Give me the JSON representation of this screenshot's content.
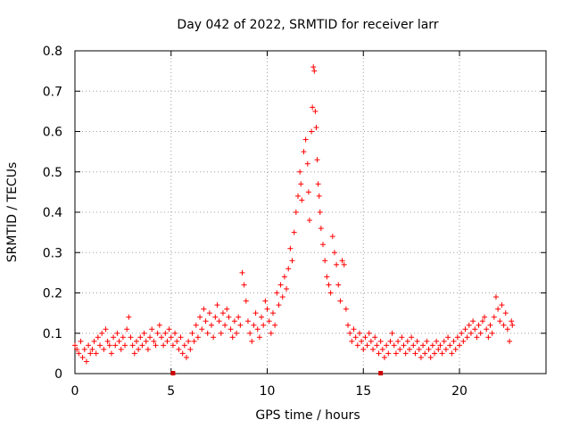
{
  "chart_data": {
    "type": "scatter",
    "title": "Day 042 of 2022, SRMTID for receiver larr",
    "xlabel": "GPS time / hours",
    "ylabel": "SRMTID / TECUs",
    "xlim": [
      0,
      24.5
    ],
    "ylim": [
      0,
      0.8
    ],
    "x_ticks": [
      0,
      5,
      10,
      15,
      20
    ],
    "y_ticks": [
      0,
      0.1,
      0.2,
      0.3,
      0.4,
      0.5,
      0.6,
      0.7,
      0.8
    ],
    "x_tick_labels": [
      "0",
      "5",
      "10",
      "15",
      "20"
    ],
    "y_tick_labels": [
      "0",
      "0.1",
      "0.2",
      "0.3",
      "0.4",
      "0.5",
      "0.6",
      "0.7",
      "0.8"
    ],
    "grid": true,
    "marker": "plus",
    "color": "#ff0000",
    "axis_markers_x": [
      5.1,
      15.9
    ],
    "series": [
      {
        "name": "SRMTID",
        "points": [
          [
            0.0,
            0.07
          ],
          [
            0.1,
            0.06
          ],
          [
            0.2,
            0.05
          ],
          [
            0.3,
            0.08
          ],
          [
            0.4,
            0.04
          ],
          [
            0.5,
            0.06
          ],
          [
            0.6,
            0.03
          ],
          [
            0.7,
            0.07
          ],
          [
            0.8,
            0.05
          ],
          [
            0.9,
            0.06
          ],
          [
            1.0,
            0.08
          ],
          [
            1.1,
            0.05
          ],
          [
            1.2,
            0.09
          ],
          [
            1.3,
            0.07
          ],
          [
            1.4,
            0.1
          ],
          [
            1.5,
            0.06
          ],
          [
            1.6,
            0.11
          ],
          [
            1.7,
            0.08
          ],
          [
            1.8,
            0.07
          ],
          [
            1.9,
            0.05
          ],
          [
            2.0,
            0.09
          ],
          [
            2.1,
            0.07
          ],
          [
            2.2,
            0.1
          ],
          [
            2.3,
            0.08
          ],
          [
            2.4,
            0.06
          ],
          [
            2.5,
            0.09
          ],
          [
            2.6,
            0.07
          ],
          [
            2.7,
            0.11
          ],
          [
            2.8,
            0.14
          ],
          [
            2.9,
            0.09
          ],
          [
            3.0,
            0.07
          ],
          [
            3.1,
            0.05
          ],
          [
            3.2,
            0.08
          ],
          [
            3.3,
            0.06
          ],
          [
            3.4,
            0.09
          ],
          [
            3.5,
            0.07
          ],
          [
            3.6,
            0.1
          ],
          [
            3.7,
            0.08
          ],
          [
            3.8,
            0.06
          ],
          [
            3.9,
            0.09
          ],
          [
            4.0,
            0.11
          ],
          [
            4.1,
            0.08
          ],
          [
            4.2,
            0.07
          ],
          [
            4.3,
            0.1
          ],
          [
            4.4,
            0.12
          ],
          [
            4.5,
            0.09
          ],
          [
            4.6,
            0.07
          ],
          [
            4.7,
            0.1
          ],
          [
            4.8,
            0.08
          ],
          [
            4.9,
            0.11
          ],
          [
            5.0,
            0.09
          ],
          [
            5.1,
            0.07
          ],
          [
            5.2,
            0.1
          ],
          [
            5.3,
            0.08
          ],
          [
            5.4,
            0.06
          ],
          [
            5.5,
            0.09
          ],
          [
            5.6,
            0.05
          ],
          [
            5.7,
            0.07
          ],
          [
            5.8,
            0.04
          ],
          [
            5.9,
            0.08
          ],
          [
            6.0,
            0.06
          ],
          [
            6.1,
            0.1
          ],
          [
            6.2,
            0.08
          ],
          [
            6.3,
            0.12
          ],
          [
            6.4,
            0.09
          ],
          [
            6.5,
            0.14
          ],
          [
            6.6,
            0.11
          ],
          [
            6.7,
            0.16
          ],
          [
            6.8,
            0.13
          ],
          [
            6.9,
            0.1
          ],
          [
            7.0,
            0.15
          ],
          [
            7.1,
            0.12
          ],
          [
            7.2,
            0.09
          ],
          [
            7.3,
            0.14
          ],
          [
            7.4,
            0.17
          ],
          [
            7.5,
            0.13
          ],
          [
            7.6,
            0.1
          ],
          [
            7.7,
            0.15
          ],
          [
            7.8,
            0.12
          ],
          [
            7.9,
            0.16
          ],
          [
            8.0,
            0.14
          ],
          [
            8.1,
            0.11
          ],
          [
            8.2,
            0.09
          ],
          [
            8.3,
            0.13
          ],
          [
            8.4,
            0.1
          ],
          [
            8.5,
            0.14
          ],
          [
            8.6,
            0.12
          ],
          [
            8.7,
            0.25
          ],
          [
            8.8,
            0.22
          ],
          [
            8.9,
            0.18
          ],
          [
            9.0,
            0.13
          ],
          [
            9.1,
            0.1
          ],
          [
            9.2,
            0.08
          ],
          [
            9.3,
            0.12
          ],
          [
            9.4,
            0.15
          ],
          [
            9.5,
            0.11
          ],
          [
            9.6,
            0.09
          ],
          [
            9.7,
            0.14
          ],
          [
            9.8,
            0.12
          ],
          [
            9.9,
            0.18
          ],
          [
            10.0,
            0.16
          ],
          [
            10.1,
            0.13
          ],
          [
            10.2,
            0.1
          ],
          [
            10.3,
            0.15
          ],
          [
            10.4,
            0.12
          ],
          [
            10.5,
            0.2
          ],
          [
            10.6,
            0.17
          ],
          [
            10.7,
            0.22
          ],
          [
            10.8,
            0.19
          ],
          [
            10.9,
            0.24
          ],
          [
            11.0,
            0.21
          ],
          [
            11.1,
            0.26
          ],
          [
            11.2,
            0.31
          ],
          [
            11.3,
            0.28
          ],
          [
            11.4,
            0.35
          ],
          [
            11.5,
            0.4
          ],
          [
            11.6,
            0.44
          ],
          [
            11.7,
            0.5
          ],
          [
            11.75,
            0.47
          ],
          [
            11.8,
            0.43
          ],
          [
            11.9,
            0.55
          ],
          [
            12.0,
            0.58
          ],
          [
            12.1,
            0.52
          ],
          [
            12.15,
            0.45
          ],
          [
            12.2,
            0.38
          ],
          [
            12.3,
            0.6
          ],
          [
            12.35,
            0.66
          ],
          [
            12.4,
            0.76
          ],
          [
            12.45,
            0.75
          ],
          [
            12.5,
            0.65
          ],
          [
            12.55,
            0.61
          ],
          [
            12.6,
            0.53
          ],
          [
            12.65,
            0.47
          ],
          [
            12.7,
            0.44
          ],
          [
            12.75,
            0.4
          ],
          [
            12.8,
            0.36
          ],
          [
            12.9,
            0.32
          ],
          [
            13.0,
            0.28
          ],
          [
            13.1,
            0.24
          ],
          [
            13.2,
            0.22
          ],
          [
            13.3,
            0.2
          ],
          [
            13.4,
            0.34
          ],
          [
            13.5,
            0.3
          ],
          [
            13.6,
            0.27
          ],
          [
            13.7,
            0.22
          ],
          [
            13.8,
            0.18
          ],
          [
            13.9,
            0.28
          ],
          [
            14.0,
            0.27
          ],
          [
            14.1,
            0.16
          ],
          [
            14.2,
            0.12
          ],
          [
            14.3,
            0.1
          ],
          [
            14.4,
            0.08
          ],
          [
            14.5,
            0.11
          ],
          [
            14.6,
            0.09
          ],
          [
            14.7,
            0.07
          ],
          [
            14.8,
            0.1
          ],
          [
            14.9,
            0.08
          ],
          [
            15.0,
            0.06
          ],
          [
            15.1,
            0.09
          ],
          [
            15.2,
            0.07
          ],
          [
            15.3,
            0.1
          ],
          [
            15.4,
            0.08
          ],
          [
            15.5,
            0.06
          ],
          [
            15.6,
            0.09
          ],
          [
            15.7,
            0.07
          ],
          [
            15.8,
            0.05
          ],
          [
            15.9,
            0.08
          ],
          [
            16.0,
            0.06
          ],
          [
            16.1,
            0.04
          ],
          [
            16.2,
            0.07
          ],
          [
            16.3,
            0.05
          ],
          [
            16.4,
            0.08
          ],
          [
            16.5,
            0.1
          ],
          [
            16.6,
            0.07
          ],
          [
            16.7,
            0.05
          ],
          [
            16.8,
            0.08
          ],
          [
            16.9,
            0.06
          ],
          [
            17.0,
            0.09
          ],
          [
            17.1,
            0.07
          ],
          [
            17.2,
            0.05
          ],
          [
            17.3,
            0.08
          ],
          [
            17.4,
            0.06
          ],
          [
            17.5,
            0.09
          ],
          [
            17.6,
            0.07
          ],
          [
            17.7,
            0.05
          ],
          [
            17.8,
            0.08
          ],
          [
            17.9,
            0.06
          ],
          [
            18.0,
            0.04
          ],
          [
            18.1,
            0.07
          ],
          [
            18.2,
            0.05
          ],
          [
            18.3,
            0.08
          ],
          [
            18.4,
            0.06
          ],
          [
            18.5,
            0.04
          ],
          [
            18.6,
            0.07
          ],
          [
            18.7,
            0.05
          ],
          [
            18.8,
            0.08
          ],
          [
            18.9,
            0.06
          ],
          [
            19.0,
            0.07
          ],
          [
            19.1,
            0.05
          ],
          [
            19.2,
            0.08
          ],
          [
            19.3,
            0.06
          ],
          [
            19.4,
            0.09
          ],
          [
            19.5,
            0.07
          ],
          [
            19.6,
            0.05
          ],
          [
            19.7,
            0.08
          ],
          [
            19.8,
            0.06
          ],
          [
            19.9,
            0.09
          ],
          [
            20.0,
            0.07
          ],
          [
            20.1,
            0.1
          ],
          [
            20.2,
            0.08
          ],
          [
            20.3,
            0.11
          ],
          [
            20.4,
            0.09
          ],
          [
            20.5,
            0.12
          ],
          [
            20.6,
            0.1
          ],
          [
            20.7,
            0.13
          ],
          [
            20.8,
            0.11
          ],
          [
            20.9,
            0.09
          ],
          [
            21.0,
            0.12
          ],
          [
            21.1,
            0.1
          ],
          [
            21.2,
            0.13
          ],
          [
            21.3,
            0.14
          ],
          [
            21.4,
            0.11
          ],
          [
            21.5,
            0.09
          ],
          [
            21.6,
            0.12
          ],
          [
            21.7,
            0.1
          ],
          [
            21.8,
            0.14
          ],
          [
            21.9,
            0.19
          ],
          [
            22.0,
            0.16
          ],
          [
            22.1,
            0.13
          ],
          [
            22.2,
            0.17
          ],
          [
            22.3,
            0.12
          ],
          [
            22.4,
            0.15
          ],
          [
            22.5,
            0.11
          ],
          [
            22.6,
            0.08
          ],
          [
            22.7,
            0.13
          ],
          [
            22.75,
            0.12
          ]
        ]
      }
    ]
  }
}
